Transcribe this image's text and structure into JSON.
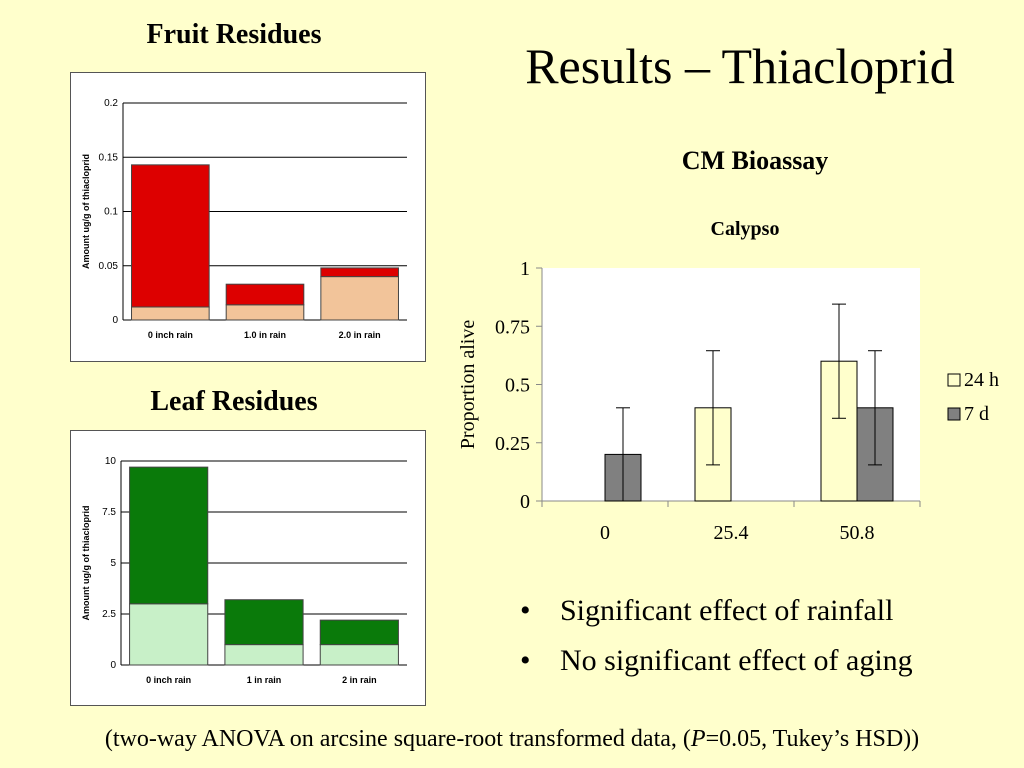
{
  "slide": {
    "title": "Results – Thiacloprid",
    "bullets": [
      "Significant effect of rainfall",
      "No significant effect of aging"
    ],
    "footnote_parts": [
      "(two-way ANOVA on arcsine square-root transformed data, (",
      "P",
      "=0.05, Tukey’s HSD))"
    ]
  },
  "fruit": {
    "heading": "Fruit Residues"
  },
  "leaf": {
    "heading": "Leaf Residues"
  },
  "bioassay": {
    "heading": "CM Bioassay"
  },
  "colors": {
    "fruit_top": "#dd0000",
    "fruit_base": "#f2c49a",
    "leaf_top": "#0a7a0a",
    "leaf_base": "#c8f0c8",
    "bar_24h": "#ffffcc",
    "bar_7d": "#808080"
  },
  "chart_data": [
    {
      "id": "fruit",
      "type": "bar",
      "stacked": true,
      "title": "",
      "ylabel": "Amount ug/g of thiacloprid",
      "categories": [
        "0 inch rain",
        "1.0 in rain",
        "2.0 in rain"
      ],
      "series": [
        {
          "values": [
            0.012,
            0.014,
            0.04
          ]
        },
        {
          "values": [
            0.131,
            0.019,
            0.008
          ]
        }
      ],
      "ylim": [
        0,
        0.2
      ],
      "yticks": [
        0,
        0.05,
        0.1,
        0.15,
        0.2
      ],
      "ytick_labels": [
        "0",
        "0.05",
        "0.1",
        "0.15",
        "0.2"
      ],
      "grid": true,
      "legend": "none"
    },
    {
      "id": "leaf",
      "type": "bar",
      "stacked": true,
      "title": "",
      "ylabel": "Amount ug/g of thiacloprid",
      "categories": [
        "0 inch rain",
        "1 in rain",
        "2 in rain"
      ],
      "series": [
        {
          "values": [
            3.0,
            1.0,
            1.0
          ]
        },
        {
          "values": [
            6.7,
            2.2,
            1.2
          ]
        }
      ],
      "ylim": [
        0,
        10
      ],
      "yticks": [
        0,
        2.5,
        5,
        7.5,
        10
      ],
      "ytick_labels": [
        "0",
        "2.5",
        "5",
        "7.5",
        "10"
      ],
      "grid": true,
      "legend": "none"
    },
    {
      "id": "calypso",
      "type": "bar",
      "title": "Calypso",
      "ylabel": "Proportion alive",
      "categories": [
        "0",
        "25.4",
        "50.8"
      ],
      "series": [
        {
          "name": "24 h",
          "values": [
            0,
            0.4,
            0.6
          ],
          "error": [
            0,
            0.245,
            0.245
          ]
        },
        {
          "name": "7 d",
          "values": [
            0.2,
            0,
            0.4
          ],
          "error": [
            0.2,
            0,
            0.245
          ]
        }
      ],
      "ylim": [
        0,
        1
      ],
      "yticks": [
        0,
        0.25,
        0.5,
        0.75,
        1
      ],
      "ytick_labels": [
        "0",
        "0.25",
        "0.5",
        "0.75",
        "1"
      ],
      "grid": false,
      "legend": "right"
    }
  ]
}
